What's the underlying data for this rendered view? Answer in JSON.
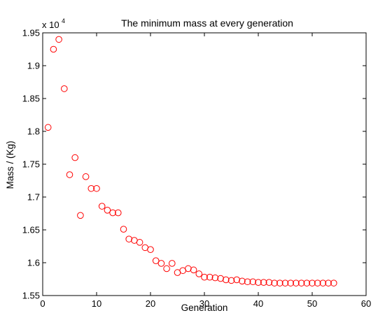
{
  "chart_data": {
    "type": "scatter",
    "title": "The minimum mass at every generation",
    "xlabel": "Generation",
    "ylabel": "Mass / (Kg)",
    "y_multiplier_base": "x 10",
    "y_multiplier_exponent": "4",
    "xlim": [
      0,
      60
    ],
    "ylim": [
      1.55,
      1.95
    ],
    "xticks": [
      "0",
      "10",
      "20",
      "30",
      "40",
      "50",
      "60"
    ],
    "yticks": [
      "1.55",
      "1.6",
      "1.65",
      "1.7",
      "1.75",
      "1.8",
      "1.85",
      "1.9",
      "1.95"
    ],
    "grid": false,
    "marker": "circle-open",
    "marker_color": "#ff0000",
    "series": [
      {
        "x": [
          1,
          2,
          3,
          4,
          5,
          6,
          7,
          8,
          9,
          10,
          11,
          12,
          13,
          14,
          15,
          16,
          17,
          18,
          19,
          20,
          21,
          22,
          23,
          24,
          25,
          26,
          27,
          28,
          29,
          30,
          31,
          32,
          33,
          34,
          35,
          36,
          37,
          38,
          39,
          40,
          41,
          42,
          43,
          44,
          45,
          46,
          47,
          48,
          49,
          50,
          51,
          52,
          53,
          54
        ],
        "values": [
          1.806,
          1.925,
          1.94,
          1.865,
          1.734,
          1.76,
          1.672,
          1.731,
          1.713,
          1.713,
          1.686,
          1.68,
          1.676,
          1.676,
          1.651,
          1.636,
          1.634,
          1.631,
          1.623,
          1.62,
          1.603,
          1.599,
          1.591,
          1.599,
          1.585,
          1.588,
          1.591,
          1.589,
          1.583,
          1.578,
          1.578,
          1.577,
          1.576,
          1.574,
          1.573,
          1.574,
          1.572,
          1.571,
          1.571,
          1.57,
          1.57,
          1.57,
          1.569,
          1.569,
          1.569,
          1.569,
          1.569,
          1.569,
          1.569,
          1.569,
          1.569,
          1.569,
          1.569,
          1.569
        ]
      }
    ]
  }
}
